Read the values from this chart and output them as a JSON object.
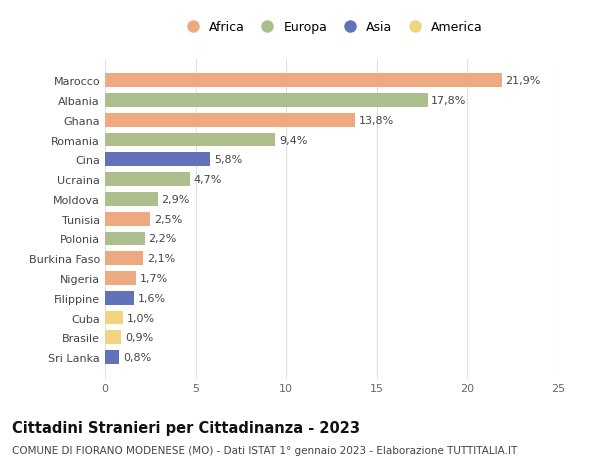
{
  "countries": [
    "Sri Lanka",
    "Brasile",
    "Cuba",
    "Filippine",
    "Nigeria",
    "Burkina Faso",
    "Polonia",
    "Tunisia",
    "Moldova",
    "Ucraina",
    "Cina",
    "Romania",
    "Ghana",
    "Albania",
    "Marocco"
  ],
  "values": [
    0.8,
    0.9,
    1.0,
    1.6,
    1.7,
    2.1,
    2.2,
    2.5,
    2.9,
    4.7,
    5.8,
    9.4,
    13.8,
    17.8,
    21.9
  ],
  "labels": [
    "0,8%",
    "0,9%",
    "1,0%",
    "1,6%",
    "1,7%",
    "2,1%",
    "2,2%",
    "2,5%",
    "2,9%",
    "4,7%",
    "5,8%",
    "9,4%",
    "13,8%",
    "17,8%",
    "21,9%"
  ],
  "continents": [
    "Asia",
    "America",
    "America",
    "Asia",
    "Africa",
    "Africa",
    "Europa",
    "Africa",
    "Europa",
    "Europa",
    "Asia",
    "Europa",
    "Africa",
    "Europa",
    "Africa"
  ],
  "colors": {
    "Africa": "#EDAA80",
    "Europa": "#ABBE8C",
    "Asia": "#6272B8",
    "America": "#F2D480"
  },
  "legend_order": [
    "Africa",
    "Europa",
    "Asia",
    "America"
  ],
  "title": "Cittadini Stranieri per Cittadinanza - 2023",
  "subtitle": "COMUNE DI FIORANO MODENESE (MO) - Dati ISTAT 1° gennaio 2023 - Elaborazione TUTTITALIA.IT",
  "xlim": [
    0,
    25
  ],
  "xticks": [
    0,
    5,
    10,
    15,
    20,
    25
  ],
  "background_color": "#FFFFFF",
  "grid_color": "#E0E0E0",
  "bar_height": 0.7,
  "label_fontsize": 8,
  "tick_fontsize": 8,
  "ytick_fontsize": 8,
  "title_fontsize": 10.5,
  "subtitle_fontsize": 7.5
}
